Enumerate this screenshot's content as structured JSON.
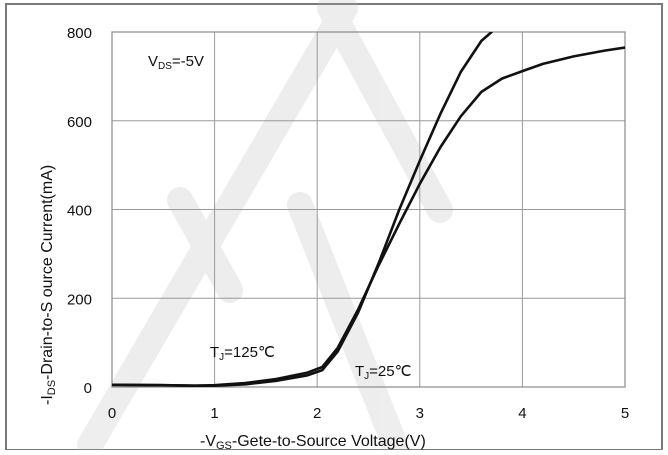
{
  "chart_data": {
    "type": "line",
    "title": "",
    "xlabel": "-V",
    "xlabel_sub": "GS",
    "xlabel_rest": "-Gete-to-Source Voltage(V)",
    "ylabel": "-I",
    "ylabel_sub": "DS",
    "ylabel_rest": "-Drain-to-S ource Current(mA)",
    "xlim": [
      0,
      5
    ],
    "ylim": [
      0,
      800
    ],
    "x_ticks": [
      "0",
      "1",
      "2",
      "3",
      "4",
      "5"
    ],
    "y_ticks": [
      "0",
      "200",
      "400",
      "600",
      "800"
    ],
    "grid": true,
    "annotation_vds": {
      "main": "V",
      "sub": "DS",
      "rest": "=-5V"
    },
    "series": [
      {
        "label": {
          "main": "T",
          "sub": "J",
          "rest": "=125℃"
        },
        "color": "#111111",
        "points": [
          [
            0,
            5
          ],
          [
            0.5,
            4
          ],
          [
            0.8,
            3
          ],
          [
            1,
            4
          ],
          [
            1.3,
            9
          ],
          [
            1.6,
            18
          ],
          [
            1.9,
            32
          ],
          [
            2.05,
            45
          ],
          [
            2.2,
            88
          ],
          [
            2.4,
            175
          ],
          [
            2.6,
            275
          ],
          [
            2.8,
            368
          ],
          [
            3.0,
            458
          ],
          [
            3.2,
            540
          ],
          [
            3.4,
            610
          ],
          [
            3.6,
            665
          ],
          [
            3.8,
            695
          ],
          [
            4.0,
            712
          ],
          [
            4.2,
            728
          ],
          [
            4.5,
            745
          ],
          [
            4.8,
            758
          ],
          [
            5.0,
            765
          ]
        ]
      },
      {
        "label": {
          "main": "T",
          "sub": "J",
          "rest": "=25℃"
        },
        "color": "#111111",
        "points": [
          [
            0,
            5
          ],
          [
            0.5,
            4
          ],
          [
            0.8,
            3
          ],
          [
            1,
            3
          ],
          [
            1.3,
            6
          ],
          [
            1.6,
            14
          ],
          [
            1.9,
            26
          ],
          [
            2.05,
            38
          ],
          [
            2.2,
            80
          ],
          [
            2.4,
            168
          ],
          [
            2.6,
            280
          ],
          [
            2.8,
            400
          ],
          [
            3.0,
            510
          ],
          [
            3.2,
            615
          ],
          [
            3.4,
            710
          ],
          [
            3.6,
            780
          ],
          [
            3.7,
            800
          ]
        ]
      }
    ]
  }
}
